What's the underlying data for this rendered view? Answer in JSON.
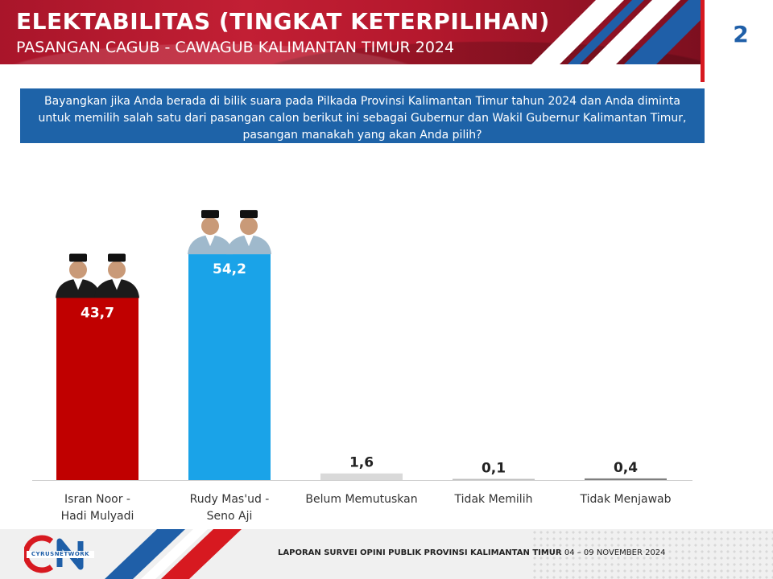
{
  "header": {
    "title": "ELEKTABILITAS (TINGKAT KETERPILIHAN)",
    "subtitle": "PASANGAN CAGUB - CAWAGUB KALIMANTAN TIMUR 2024",
    "page_number": "2"
  },
  "question": "Bayangkan jika Anda berada di bilik suara pada Pilkada Provinsi Kalimantan Timur tahun 2024 dan Anda diminta untuk memilih salah satu dari pasangan calon berikut ini sebagai Gubernur dan Wakil Gubernur Kalimantan Timur, pasangan manakah yang akan Anda pilih?",
  "chart_data": {
    "type": "bar",
    "title": "",
    "xlabel": "",
    "ylabel": "",
    "ylim": [
      0,
      60
    ],
    "grid": false,
    "legend": "none",
    "categories": [
      [
        "Isran Noor -",
        "Hadi Mulyadi"
      ],
      [
        "Rudy Mas'ud -",
        "Seno Aji"
      ],
      [
        "Belum Memutuskan"
      ],
      [
        "Tidak Memilih"
      ],
      [
        "Tidak Menjawab"
      ]
    ],
    "values": [
      43.7,
      54.2,
      1.6,
      0.1,
      0.4
    ],
    "value_labels": [
      "43,7",
      "54,2",
      "1,6",
      "0,1",
      "0,4"
    ],
    "colors": [
      "#c00000",
      "#1aa3e8",
      "#d9d9d9",
      "#bfbfbf",
      "#7f7f7f"
    ],
    "label_inside": [
      true,
      true,
      false,
      false,
      false
    ],
    "photo_icons": [
      {
        "bar": 0,
        "name": "candidate-pair-photo-icon",
        "jacket": "#1b1b1b"
      },
      {
        "bar": 1,
        "name": "candidate-pair-photo-icon",
        "jacket": "#9fb9cc"
      }
    ]
  },
  "footer": {
    "logo_text": "CYRUSNETWORK",
    "report_label": "LAPORAN SURVEI OPINI PUBLIK PROVINSI KALIMANTAN TIMUR",
    "report_dates": "04 – 09 NOVEMBER 2024"
  },
  "colors": {
    "brand_red": "#d71920",
    "brand_blue": "#1f5fa8",
    "question_bg": "#1e63a8"
  }
}
